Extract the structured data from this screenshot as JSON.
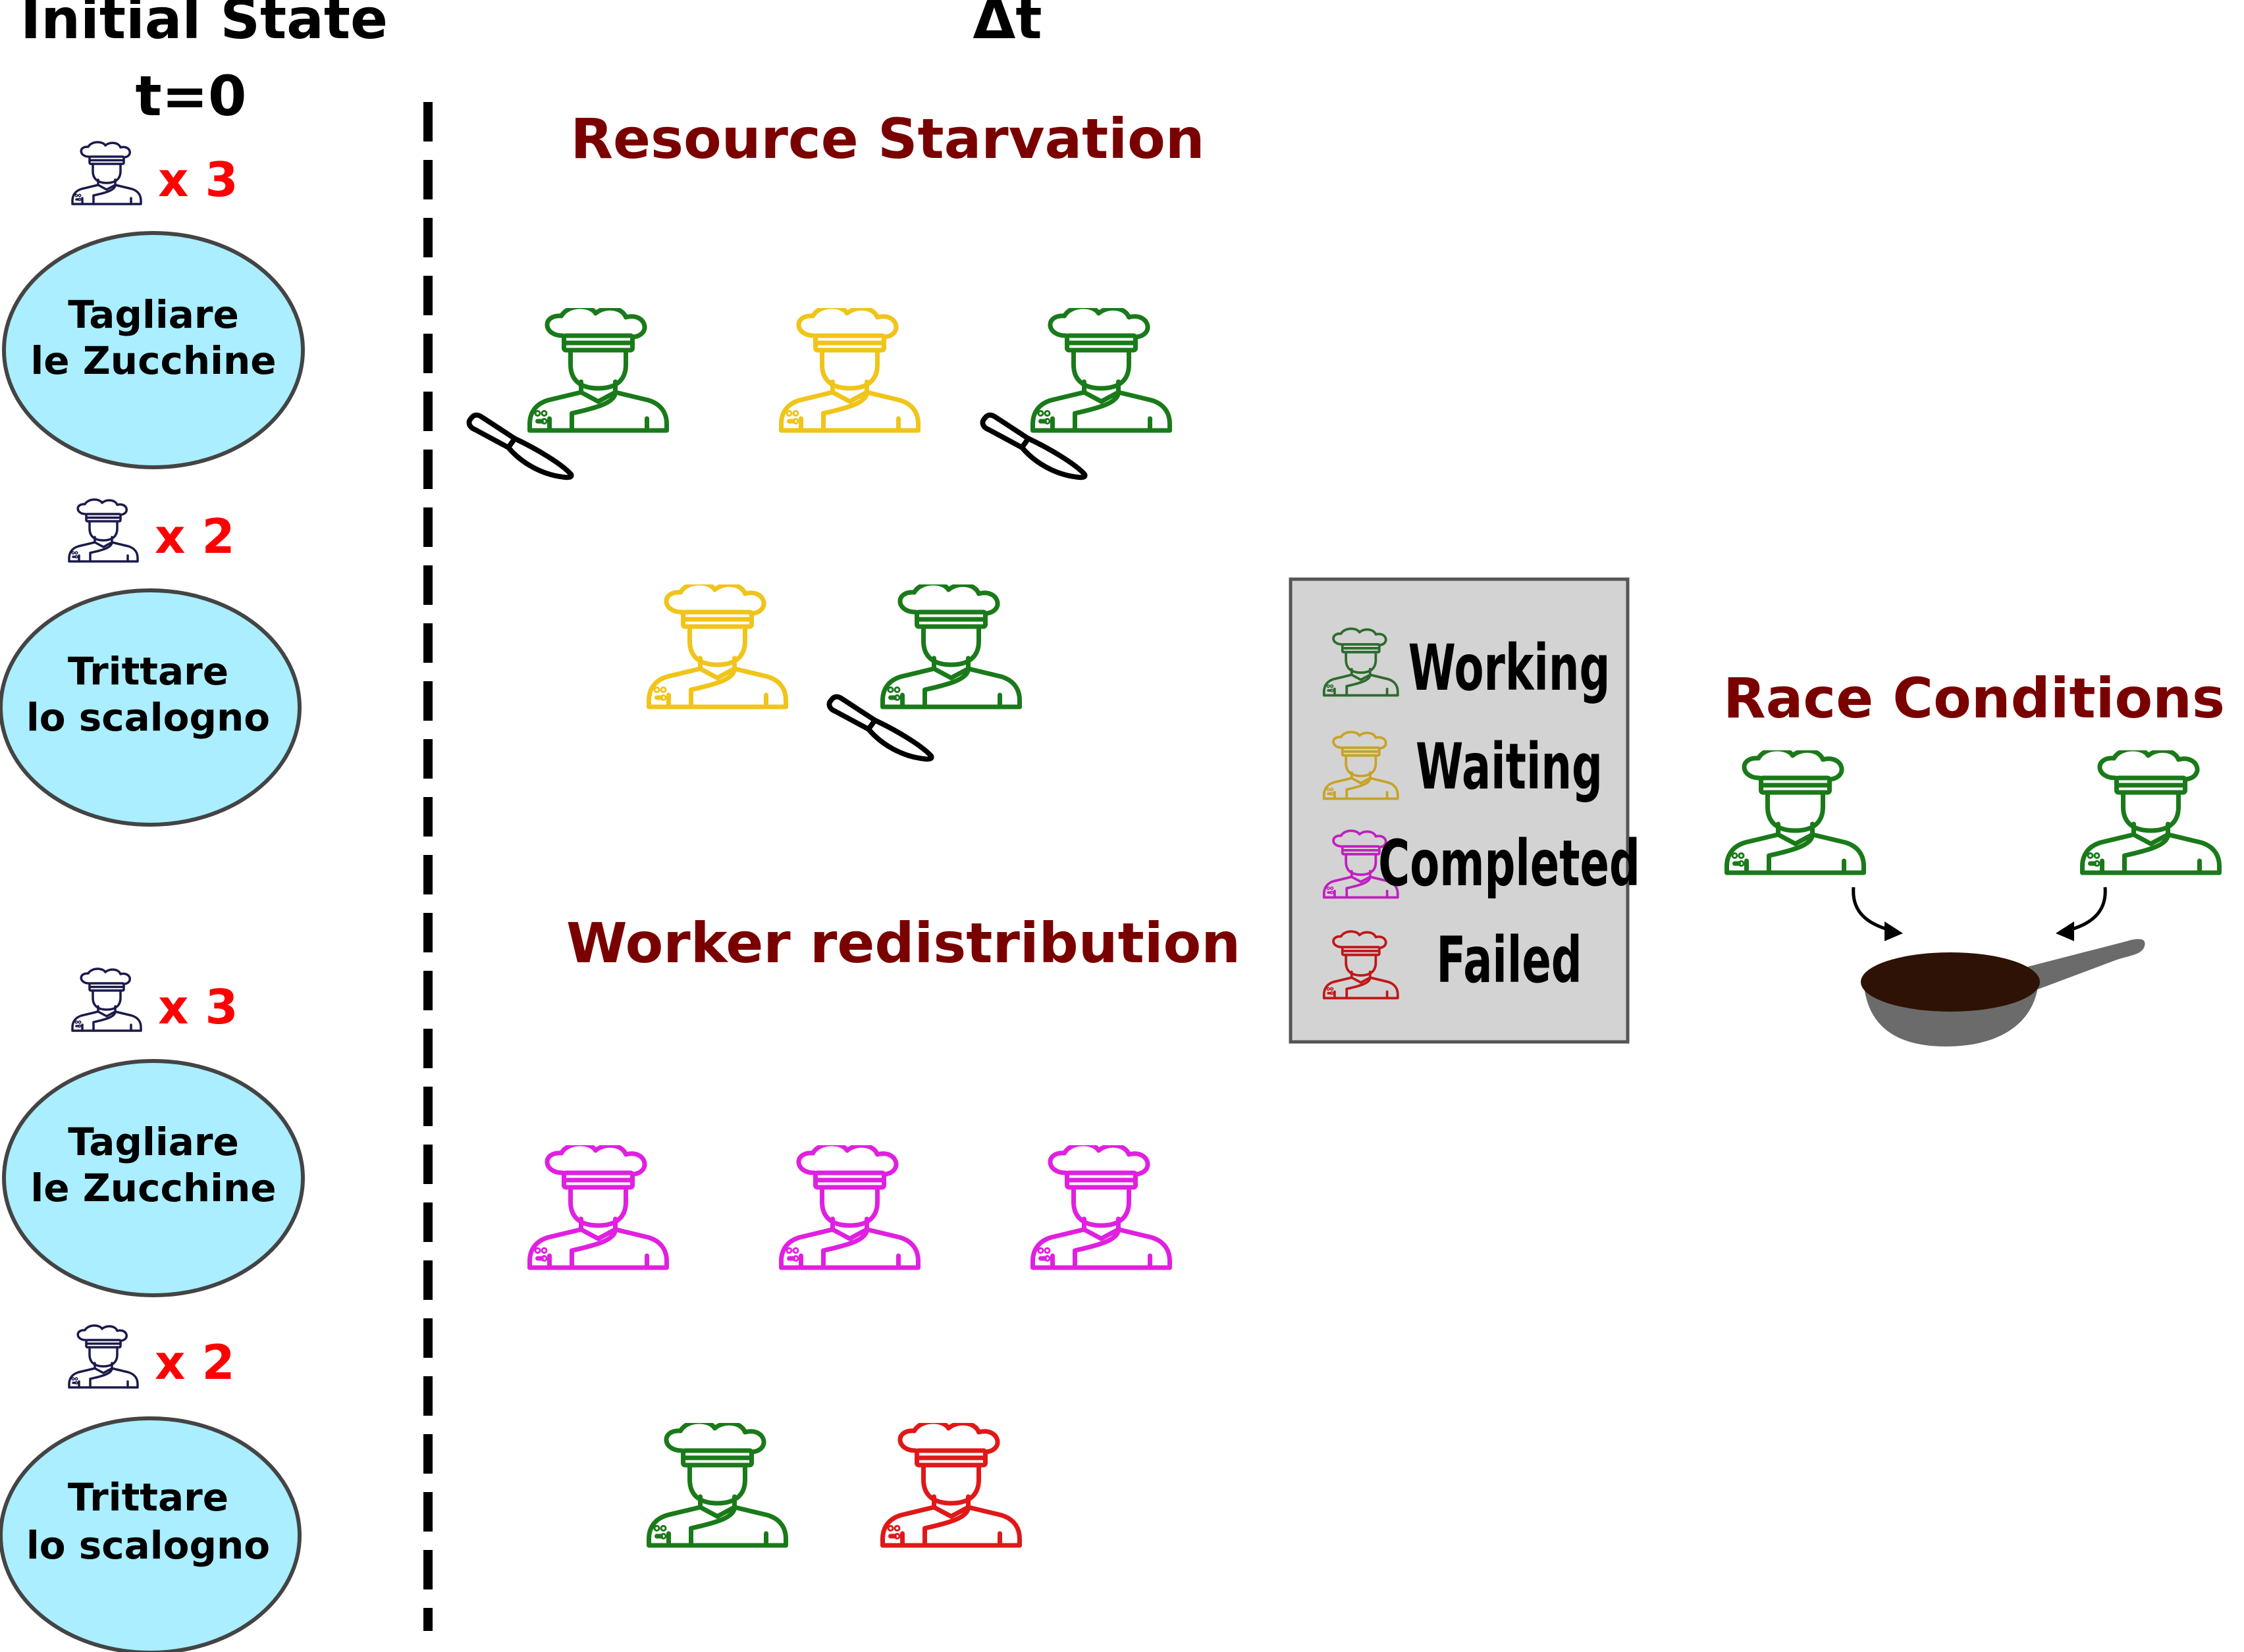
{
  "header": {
    "initial_state_line1": "Initial State",
    "initial_state_line2": "t=0",
    "delta_t": "Δt"
  },
  "sections": {
    "resource_starvation": "Resource Starvation",
    "worker_redistribution": "Worker redistribution",
    "race_conditions": "Race Conditions"
  },
  "tasks": [
    {
      "line1": "Tagliare",
      "line2": "le Zucchine",
      "workers": "x 3"
    },
    {
      "line1": "Trittare",
      "line2": "lo scalogno",
      "workers": "x 2"
    },
    {
      "line1": "Tagliare",
      "line2": "le Zucchine",
      "workers": "x 3"
    },
    {
      "line1": "Trittare",
      "line2": "lo scalogno",
      "workers": "x 2"
    }
  ],
  "legend": [
    {
      "label": "Working",
      "state": "working"
    },
    {
      "label": "Waiting",
      "state": "waiting"
    },
    {
      "label": "Completed",
      "state": "completed"
    },
    {
      "label": "Failed",
      "state": "failed"
    }
  ],
  "colors": {
    "working": "#1a7a1a",
    "waiting": "#f0c419",
    "completed": "#e020e0",
    "failed": "#e01818",
    "legend_working": "#2e6b2e",
    "legend_waiting": "#c9a227",
    "legend_completed": "#c020c0",
    "legend_failed": "#c01818",
    "initial_chef": "#1a1a4a",
    "section_title": "#7a0000",
    "worker_count": "#ff0000",
    "task_fill": "#aaeeff",
    "legend_bg": "#d3d3d3",
    "pan_inner": "#2e1205",
    "pan_outer": "#6b6b6b"
  },
  "icons": {
    "chef": "chef-icon",
    "knife": "knife-icon",
    "pan": "frying-pan-icon",
    "arrow": "curved-arrow-icon"
  }
}
